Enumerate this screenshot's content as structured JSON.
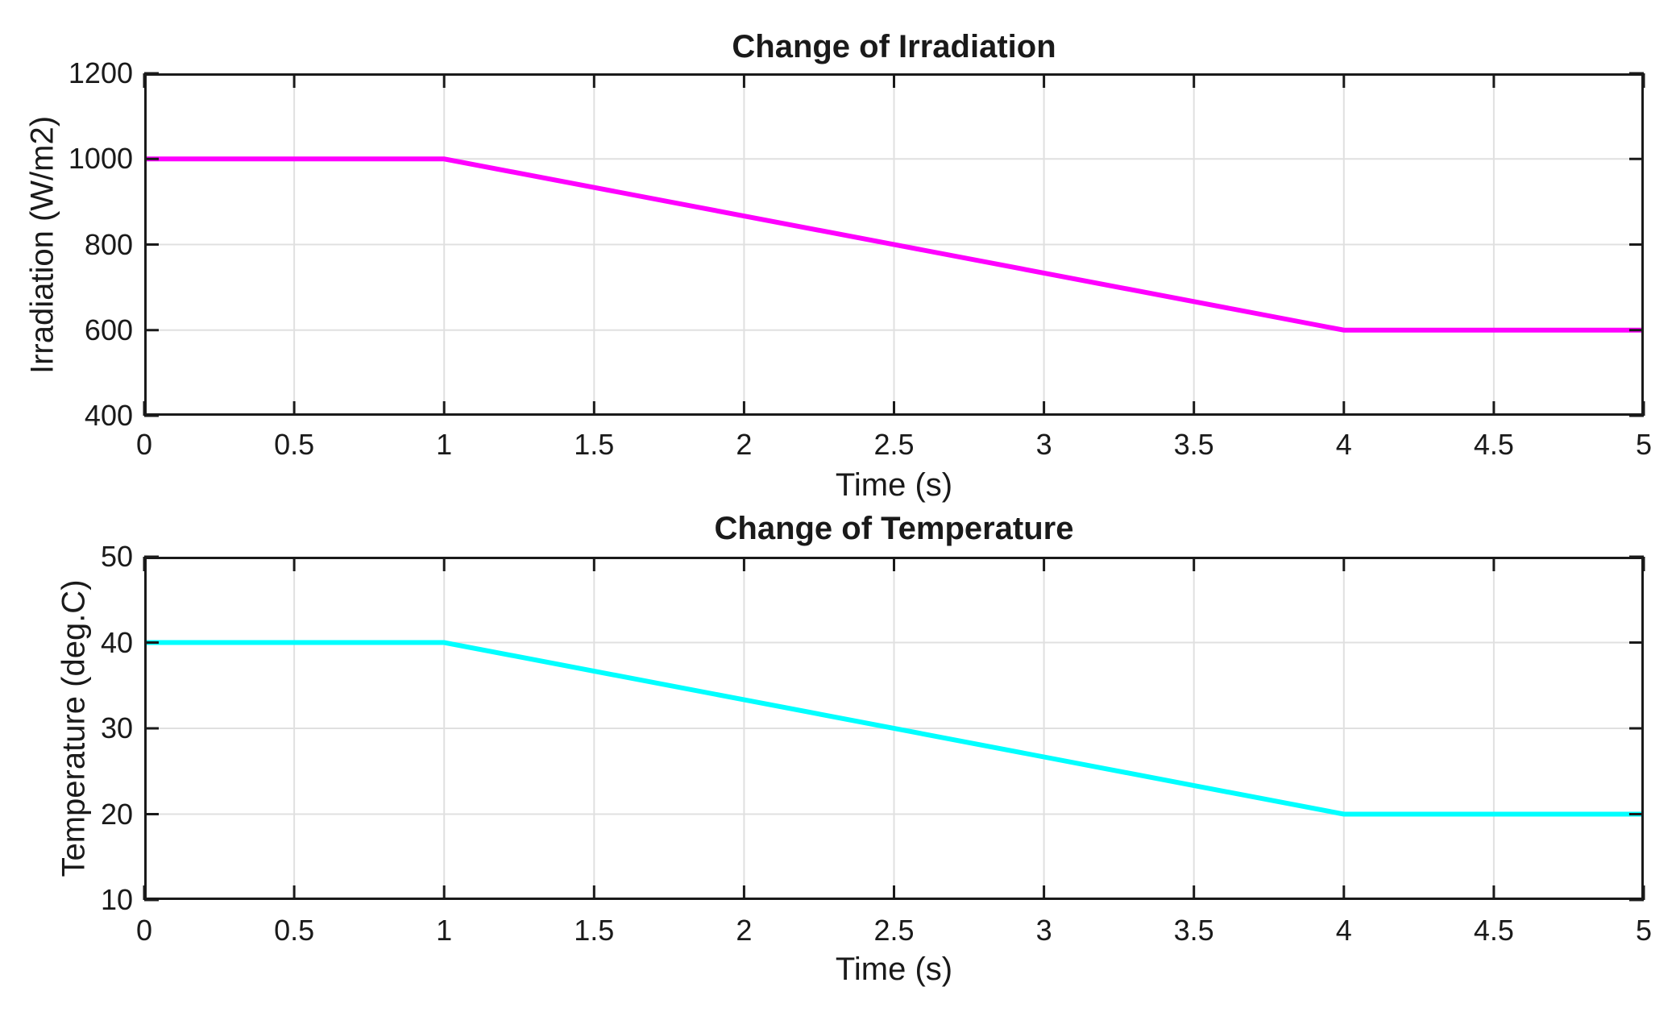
{
  "figure": {
    "background": "#ffffff",
    "description": "MATLAB-style figure with two stacked line subplots"
  },
  "colors": {
    "axis": "#1a1a1a",
    "grid": "#e0e0e0",
    "background": "#ffffff",
    "irradiation_line": "#ff00ff",
    "temperature_line": "#00ffff"
  },
  "chart_data": [
    {
      "type": "line",
      "title": "Change of Irradiation",
      "xlabel": "Time (s)",
      "ylabel": "Irradiation (W/m2)",
      "series_name": "irradiation-line",
      "series_color": "#ff00ff",
      "x": [
        0,
        1,
        4,
        5
      ],
      "y": [
        1000,
        1000,
        600,
        600
      ],
      "xlim": [
        0,
        5
      ],
      "ylim": [
        400,
        1200
      ],
      "xticks": [
        0,
        0.5,
        1,
        1.5,
        2,
        2.5,
        3,
        3.5,
        4,
        4.5,
        5
      ],
      "xtick_labels": [
        "0",
        "0.5",
        "1",
        "1.5",
        "2",
        "2.5",
        "3",
        "3.5",
        "4",
        "4.5",
        "5"
      ],
      "yticks": [
        400,
        600,
        800,
        1000,
        1200
      ],
      "ytick_labels": [
        "400",
        "600",
        "800",
        "1000",
        "1200"
      ],
      "grid": true,
      "box": true,
      "tick_direction": "in",
      "legend": null
    },
    {
      "type": "line",
      "title": "Change of Temperature",
      "xlabel": "Time (s)",
      "ylabel": "Temperature (deg.C)",
      "series_name": "temperature-line",
      "series_color": "#00ffff",
      "x": [
        0,
        1,
        4,
        5
      ],
      "y": [
        40,
        40,
        20,
        20
      ],
      "xlim": [
        0,
        5
      ],
      "ylim": [
        10,
        50
      ],
      "xticks": [
        0,
        0.5,
        1,
        1.5,
        2,
        2.5,
        3,
        3.5,
        4,
        4.5,
        5
      ],
      "xtick_labels": [
        "0",
        "0.5",
        "1",
        "1.5",
        "2",
        "2.5",
        "3",
        "3.5",
        "4",
        "4.5",
        "5"
      ],
      "yticks": [
        10,
        20,
        30,
        40,
        50
      ],
      "ytick_labels": [
        "10",
        "20",
        "30",
        "40",
        "50"
      ],
      "grid": true,
      "box": true,
      "tick_direction": "in",
      "legend": null
    }
  ]
}
